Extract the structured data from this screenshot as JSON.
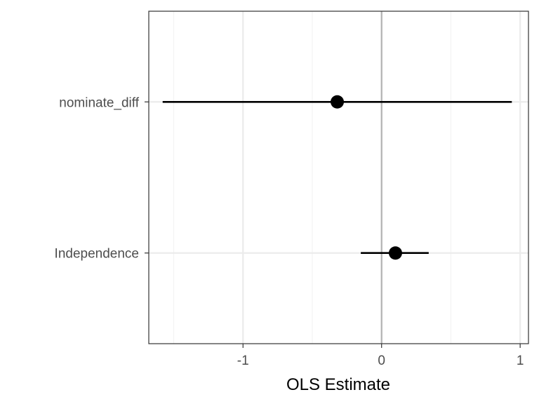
{
  "chart_data": {
    "type": "coefficient-plot",
    "title": "",
    "xlabel": "OLS Estimate",
    "ylabel": "",
    "xlim": [
      -1.68,
      1.06
    ],
    "x_ticks": [
      {
        "value": -1,
        "label": "-1"
      },
      {
        "value": 0,
        "label": "0"
      },
      {
        "value": 1,
        "label": "1"
      }
    ],
    "reference_line": 0,
    "grid": true,
    "theme": "bw",
    "colors": {
      "point": "#000000",
      "interval": "#000000",
      "reference_line": "#b3b3b3",
      "grid_major": "#ebebeb",
      "grid_minor": "#f2f2f2",
      "panel_border": "#333333"
    },
    "terms": [
      {
        "label": "nominate_diff",
        "estimate": -0.32,
        "conf_low": -1.58,
        "conf_high": 0.94
      },
      {
        "label": "Independence",
        "estimate": 0.1,
        "conf_low": -0.15,
        "conf_high": 0.34
      }
    ]
  }
}
